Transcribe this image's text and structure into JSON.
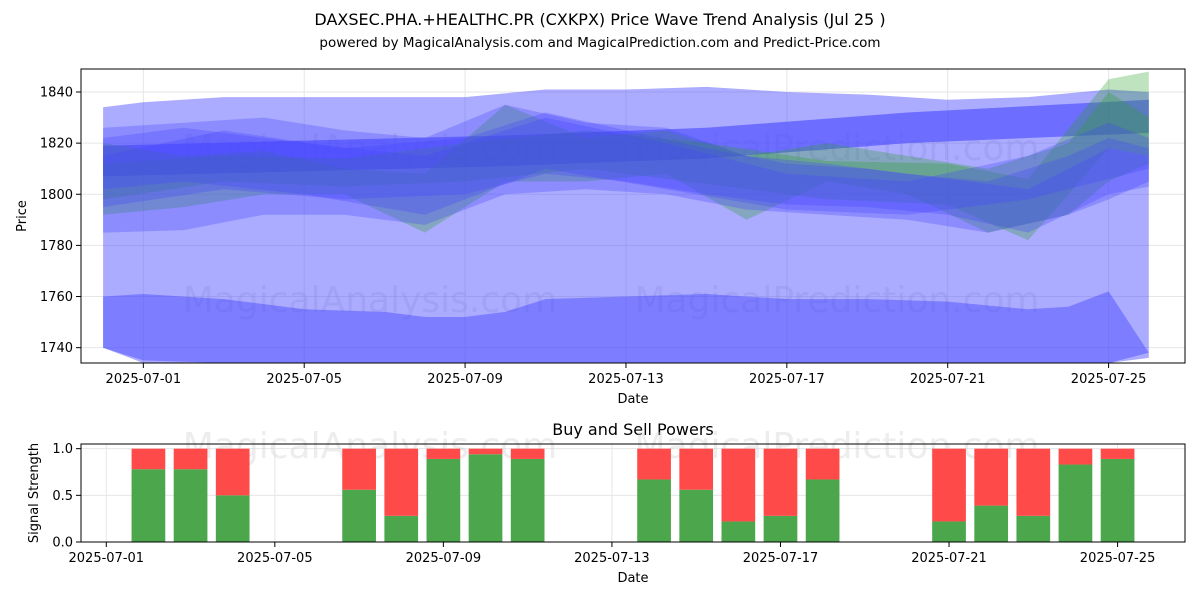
{
  "header": {
    "title": "DAXSEC.PHA.+HEALTHC.PR (CXKPX) Price Wave Trend Analysis (Jul 25 )",
    "subtitle": "powered by MagicalAnalysis.com and MagicalPrediction.com and Predict-Price.com"
  },
  "watermarks": [
    "MagicalAnalysis.com",
    "MagicalPrediction.com"
  ],
  "colors": {
    "green": "#2ca02c",
    "blue": "#4444ff",
    "buy": "#4ca64c",
    "sell": "#ff4a4a"
  },
  "chart_data": [
    {
      "type": "area",
      "title": "",
      "xlabel": "Date",
      "ylabel": "Price",
      "x_ticks": [
        "2025-07-01",
        "2025-07-05",
        "2025-07-09",
        "2025-07-13",
        "2025-07-17",
        "2025-07-21",
        "2025-07-25"
      ],
      "y_ticks": [
        1740,
        1760,
        1780,
        1800,
        1820,
        1840
      ],
      "xlim": [
        "2025-06-29",
        "2025-07-26"
      ],
      "ylim": [
        1734,
        1849
      ],
      "grid": true,
      "bands": [
        {
          "color": "blue",
          "opacity": 0.45,
          "points": [
            [
              "2025-06-30",
              1834,
              1740
            ],
            [
              "2025-07-01",
              1836,
              1734
            ],
            [
              "2025-07-03",
              1838,
              1727
            ],
            [
              "2025-07-05",
              1838,
              1727
            ],
            [
              "2025-07-07",
              1838,
              1726
            ],
            [
              "2025-07-09",
              1838,
              1727
            ],
            [
              "2025-07-11",
              1841,
              1731
            ],
            [
              "2025-07-13",
              1841,
              1728
            ],
            [
              "2025-07-15",
              1842,
              1725
            ],
            [
              "2025-07-17",
              1840,
              1722
            ],
            [
              "2025-07-19",
              1839,
              1722
            ],
            [
              "2025-07-21",
              1837,
              1722
            ],
            [
              "2025-07-23",
              1838,
              1722
            ],
            [
              "2025-07-25",
              1841,
              1726
            ],
            [
              "2025-07-26",
              1840,
              1738
            ]
          ]
        },
        {
          "color": "blue",
          "opacity": 0.45,
          "points": [
            [
              "2025-06-30",
              1760,
              1740
            ],
            [
              "2025-07-01",
              1761,
              1735
            ],
            [
              "2025-07-03",
              1759,
              1731
            ],
            [
              "2025-07-05",
              1755,
              1727
            ],
            [
              "2025-07-07",
              1754,
              1726
            ],
            [
              "2025-07-08",
              1752,
              1725
            ],
            [
              "2025-07-09",
              1752,
              1726
            ],
            [
              "2025-07-10",
              1754,
              1728
            ],
            [
              "2025-07-11",
              1759,
              1731
            ],
            [
              "2025-07-13",
              1760,
              1729
            ],
            [
              "2025-07-15",
              1761,
              1727
            ],
            [
              "2025-07-17",
              1759,
              1723
            ],
            [
              "2025-07-19",
              1759,
              1722
            ],
            [
              "2025-07-21",
              1758,
              1722
            ],
            [
              "2025-07-23",
              1755,
              1721
            ],
            [
              "2025-07-24",
              1756,
              1722
            ],
            [
              "2025-07-25",
              1762,
              1728
            ],
            [
              "2025-07-26",
              1738,
              1736
            ]
          ]
        },
        {
          "color": "blue",
          "opacity": 0.6,
          "points": [
            [
              "2025-06-30",
              1819,
              1807
            ],
            [
              "2025-07-05",
              1821,
              1809
            ],
            [
              "2025-07-10",
              1823,
              1811
            ],
            [
              "2025-07-15",
              1826,
              1814
            ],
            [
              "2025-07-20",
              1832,
              1820
            ],
            [
              "2025-07-26",
              1837,
              1824
            ]
          ]
        },
        {
          "color": "green",
          "opacity": 0.3,
          "points": [
            [
              "2025-06-30",
              1820,
              1792
            ],
            [
              "2025-07-02",
              1815,
              1795
            ],
            [
              "2025-07-04",
              1817,
              1800
            ],
            [
              "2025-07-06",
              1810,
              1800
            ],
            [
              "2025-07-08",
              1808,
              1785
            ],
            [
              "2025-07-10",
              1835,
              1805
            ],
            [
              "2025-07-12",
              1822,
              1805
            ],
            [
              "2025-07-14",
              1825,
              1808
            ],
            [
              "2025-07-16",
              1815,
              1790
            ],
            [
              "2025-07-18",
              1820,
              1805
            ],
            [
              "2025-07-20",
              1815,
              1800
            ],
            [
              "2025-07-22",
              1810,
              1785
            ],
            [
              "2025-07-24",
              1820,
              1792
            ],
            [
              "2025-07-25",
              1840,
              1805
            ],
            [
              "2025-07-26",
              1830,
              1812
            ]
          ]
        },
        {
          "color": "green",
          "opacity": 0.3,
          "points": [
            [
              "2025-06-30",
              1812,
              1798
            ],
            [
              "2025-07-03",
              1815,
              1805
            ],
            [
              "2025-07-06",
              1814,
              1803
            ],
            [
              "2025-07-09",
              1820,
              1805
            ],
            [
              "2025-07-12",
              1825,
              1810
            ],
            [
              "2025-07-15",
              1820,
              1804
            ],
            [
              "2025-07-18",
              1813,
              1798
            ],
            [
              "2025-07-21",
              1812,
              1796
            ],
            [
              "2025-07-23",
              1806,
              1782
            ],
            [
              "2025-07-25",
              1845,
              1818
            ],
            [
              "2025-07-26",
              1848,
              1815
            ]
          ]
        },
        {
          "color": "blue",
          "opacity": 0.3,
          "points": [
            [
              "2025-06-30",
              1826,
              1785
            ],
            [
              "2025-07-02",
              1828,
              1786
            ],
            [
              "2025-07-04",
              1830,
              1792
            ],
            [
              "2025-07-06",
              1825,
              1792
            ],
            [
              "2025-07-08",
              1822,
              1788
            ],
            [
              "2025-07-10",
              1835,
              1800
            ],
            [
              "2025-07-12",
              1828,
              1802
            ],
            [
              "2025-07-14",
              1826,
              1800
            ],
            [
              "2025-07-16",
              1815,
              1794
            ],
            [
              "2025-07-18",
              1812,
              1792
            ],
            [
              "2025-07-20",
              1808,
              1790
            ],
            [
              "2025-07-22",
              1805,
              1785
            ],
            [
              "2025-07-24",
              1815,
              1792
            ],
            [
              "2025-07-25",
              1822,
              1798
            ],
            [
              "2025-07-26",
              1818,
              1805
            ]
          ]
        },
        {
          "color": "blue",
          "opacity": 0.3,
          "points": [
            [
              "2025-06-30",
              1815,
              1795
            ],
            [
              "2025-07-03",
              1825,
              1802
            ],
            [
              "2025-07-06",
              1818,
              1798
            ],
            [
              "2025-07-09",
              1822,
              1800
            ],
            [
              "2025-07-11",
              1832,
              1808
            ],
            [
              "2025-07-13",
              1825,
              1805
            ],
            [
              "2025-07-15",
              1818,
              1800
            ],
            [
              "2025-07-17",
              1812,
              1796
            ],
            [
              "2025-07-19",
              1810,
              1795
            ],
            [
              "2025-07-21",
              1806,
              1792
            ],
            [
              "2025-07-23",
              1802,
              1785
            ],
            [
              "2025-07-25",
              1818,
              1800
            ],
            [
              "2025-07-26",
              1815,
              1803
            ]
          ]
        },
        {
          "color": "blue",
          "opacity": 0.3,
          "points": [
            [
              "2025-06-30",
              1822,
              1802
            ],
            [
              "2025-07-02",
              1826,
              1805
            ],
            [
              "2025-07-05",
              1820,
              1800
            ],
            [
              "2025-07-08",
              1815,
              1792
            ],
            [
              "2025-07-11",
              1830,
              1810
            ],
            [
              "2025-07-14",
              1820,
              1802
            ],
            [
              "2025-07-17",
              1808,
              1794
            ],
            [
              "2025-07-20",
              1805,
              1792
            ],
            [
              "2025-07-23",
              1815,
              1798
            ],
            [
              "2025-07-25",
              1828,
              1806
            ],
            [
              "2025-07-26",
              1822,
              1810
            ]
          ]
        }
      ]
    },
    {
      "type": "bar",
      "title": "Buy and Sell Powers",
      "xlabel": "Date",
      "ylabel": "Signal Strength",
      "x_ticks": [
        "2025-07-01",
        "2025-07-05",
        "2025-07-09",
        "2025-07-13",
        "2025-07-17",
        "2025-07-21",
        "2025-07-25"
      ],
      "y_ticks": [
        "0.0",
        "0.5",
        "1.0"
      ],
      "ylim": [
        0,
        1.05
      ],
      "grid": true,
      "stacked": true,
      "categories": [
        "2025-07-02",
        "2025-07-03",
        "2025-07-04",
        "2025-07-07",
        "2025-07-08",
        "2025-07-09",
        "2025-07-10",
        "2025-07-11",
        "2025-07-14",
        "2025-07-15",
        "2025-07-16",
        "2025-07-17",
        "2025-07-18",
        "2025-07-21",
        "2025-07-22",
        "2025-07-23",
        "2025-07-24",
        "2025-07-25"
      ],
      "series": [
        {
          "color": "buy",
          "values": [
            0.78,
            0.78,
            0.5,
            0.56,
            0.28,
            0.89,
            0.94,
            0.89,
            0.67,
            0.56,
            0.22,
            0.28,
            0.67,
            0.22,
            0.39,
            0.28,
            0.83,
            0.89
          ]
        },
        {
          "color": "sell",
          "values": [
            0.22,
            0.22,
            0.5,
            0.44,
            0.72,
            0.11,
            0.06,
            0.11,
            0.33,
            0.44,
            0.78,
            0.72,
            0.33,
            0.78,
            0.61,
            0.72,
            0.17,
            0.11
          ]
        }
      ]
    }
  ]
}
